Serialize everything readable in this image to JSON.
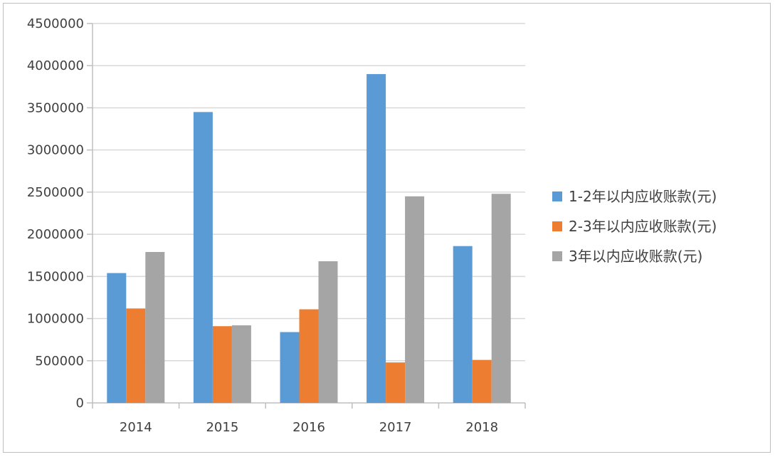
{
  "chart_data": {
    "type": "bar",
    "title": "",
    "xlabel": "",
    "ylabel": "",
    "categories": [
      "2014",
      "2015",
      "2016",
      "2017",
      "2018"
    ],
    "ylim": [
      0,
      4500000
    ],
    "yticks": [
      0,
      500000,
      1000000,
      1500000,
      2000000,
      2500000,
      3000000,
      3500000,
      4000000,
      4500000
    ],
    "ytick_labels": [
      "0",
      "500000",
      "1000000",
      "1500000",
      "2000000",
      "2500000",
      "3000000",
      "3500000",
      "4000000",
      "4500000"
    ],
    "grid": true,
    "legend_position": "right",
    "series": [
      {
        "name": "1-2年以内应收账款(元)",
        "color": "#5b9bd5",
        "values": [
          1540000,
          3450000,
          840000,
          3900000,
          1860000
        ]
      },
      {
        "name": "2-3年以内应收账款(元)",
        "color": "#ed7d31",
        "values": [
          1120000,
          910000,
          1110000,
          480000,
          510000
        ]
      },
      {
        "name": "3年以内应收账款(元)",
        "color": "#a5a5a5",
        "values": [
          1790000,
          920000,
          1680000,
          2450000,
          2480000
        ]
      }
    ]
  }
}
